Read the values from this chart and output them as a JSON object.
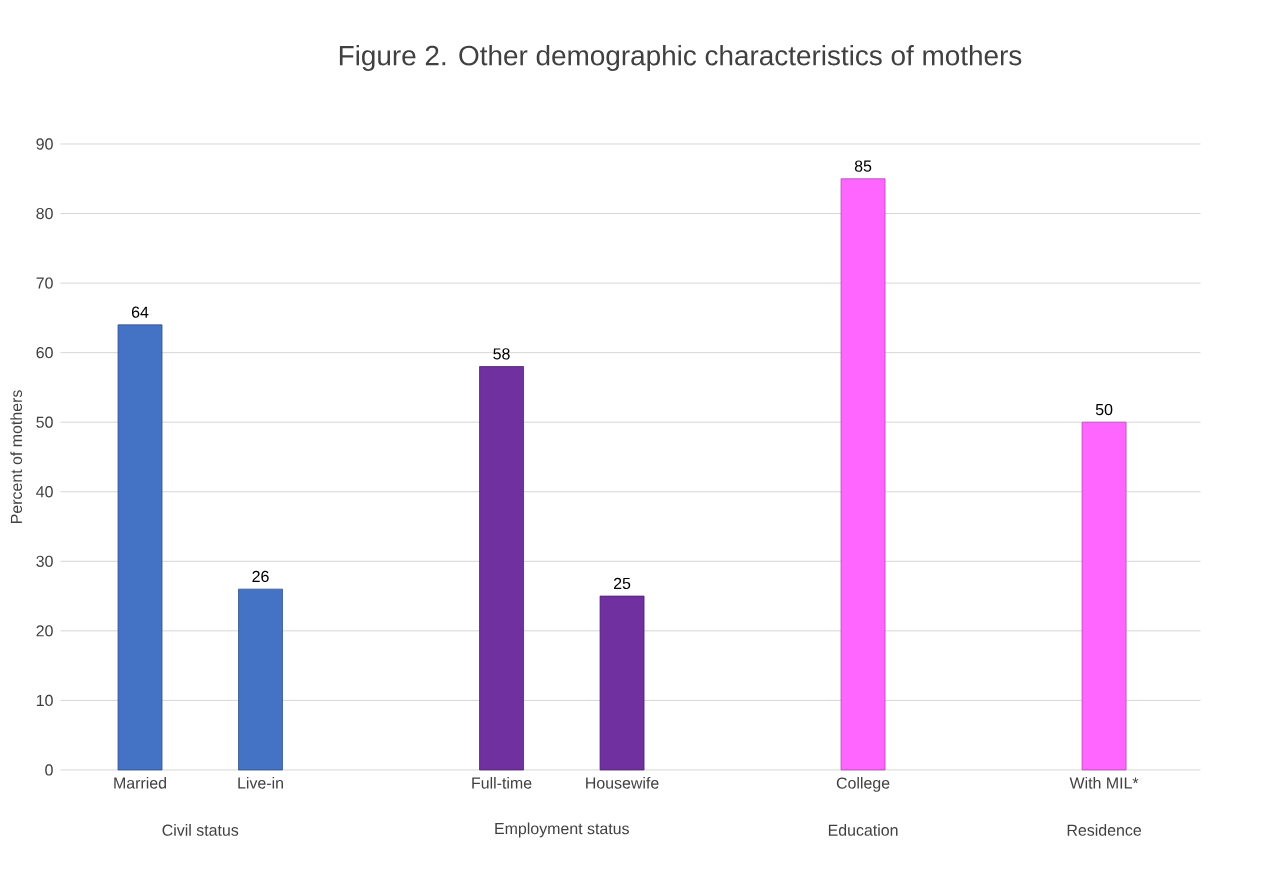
{
  "chart_data": {
    "type": "bar",
    "title": "Figure 2. Other demographic characteristics of mothers",
    "ylabel": "Percent of mothers",
    "categories": [
      "Married",
      "Live-in",
      null,
      "Full-time",
      "Housewife",
      null,
      "College",
      null,
      "With MIL*"
    ],
    "values": [
      64,
      26,
      null,
      58,
      25,
      null,
      85,
      null,
      50
    ],
    "colors": [
      "#4472c4",
      "#4472c4",
      null,
      "#7030a0",
      "#7030a0",
      null,
      "#ff66ff",
      null,
      "#ff66ff"
    ],
    "annotations": [
      "Civil status",
      "Employment status",
      "Education",
      "Residence"
    ],
    "ylim": [
      0,
      90
    ],
    "yticks": [
      0,
      10,
      20,
      30,
      40,
      50,
      60,
      70,
      80,
      90
    ],
    "grid": "y",
    "data_labels": true
  }
}
